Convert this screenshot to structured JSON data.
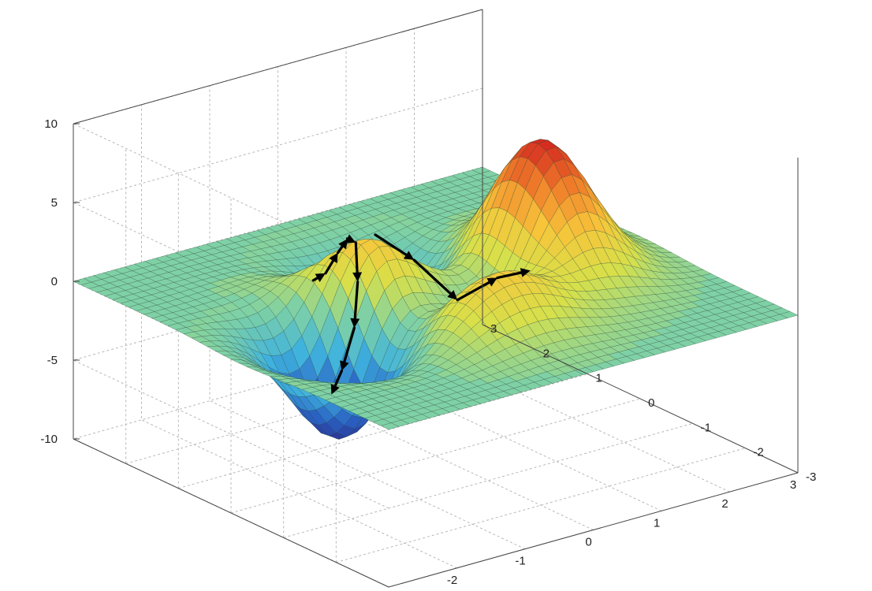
{
  "chart_data": {
    "type": "surface",
    "title": "",
    "xlabel": "",
    "ylabel": "",
    "zlabel": "",
    "xlim": [
      -3,
      3
    ],
    "ylim": [
      -3,
      3
    ],
    "zlim": [
      -10,
      10
    ],
    "x_ticks": [
      "-3",
      "-2",
      "-1",
      "0",
      "1",
      "2",
      "3"
    ],
    "y_ticks": [
      "-3",
      "-2",
      "-1",
      "0",
      "1",
      "2",
      "3"
    ],
    "z_ticks": [
      "-10",
      "-5",
      "0",
      "5",
      "10"
    ],
    "grid": true,
    "colormap": [
      "#2c2f8f",
      "#2a62c4",
      "#3fb2de",
      "#7fd1a5",
      "#d7e04a",
      "#f7c53a",
      "#f07f2a",
      "#d3251f"
    ],
    "surface": {
      "function": "peaks",
      "resolution": 40,
      "max_point": {
        "x": -0.25,
        "y": 1.6,
        "z": 8.1
      },
      "min_point": {
        "x": 0.25,
        "y": -1.6,
        "z": -6.55
      },
      "local_max": {
        "x": 1.3,
        "y": 0.2,
        "z": 3.8
      },
      "local_min": {
        "x": -1.35,
        "y": 0.2,
        "z": -3.05
      }
    },
    "path": {
      "name": "",
      "points": [
        {
          "x": -0.6,
          "y": 1.55
        },
        {
          "x": -0.65,
          "y": 1.25
        },
        {
          "x": -0.7,
          "y": 0.95
        },
        {
          "x": -0.75,
          "y": 0.7
        },
        {
          "x": -0.8,
          "y": 0.48
        },
        {
          "x": -0.95,
          "y": 0.25
        },
        {
          "x": -1.1,
          "y": 0.12
        },
        {
          "x": -1.3,
          "y": 0.1
        },
        {
          "x": -1.45,
          "y": 0.1
        }
      ],
      "branch_points": [
        {
          "x": -0.5,
          "y": 0.5
        },
        {
          "x": -0.2,
          "y": 0.15
        },
        {
          "x": 0.05,
          "y": -0.35
        },
        {
          "x": 0.25,
          "y": -0.85
        },
        {
          "x": 0.35,
          "y": -1.35
        }
      ],
      "color": "#000000"
    }
  }
}
